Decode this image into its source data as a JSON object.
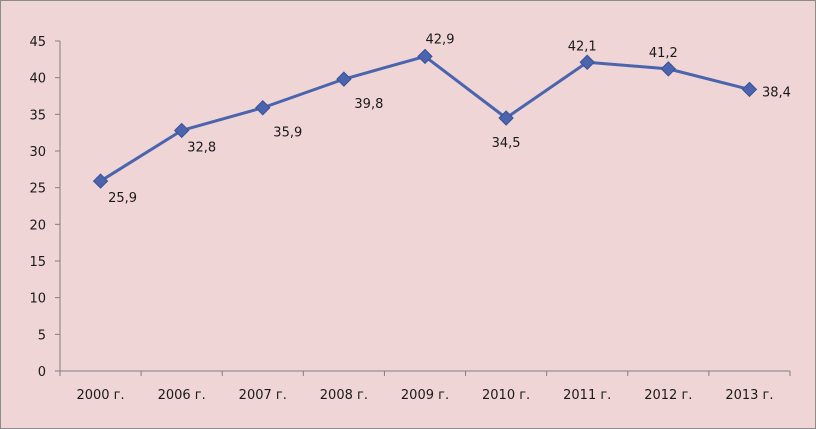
{
  "chart_data": {
    "type": "line",
    "categories": [
      "2000 г.",
      "2006 г.",
      "2007 г.",
      "2008 г.",
      "2009 г.",
      "2010 г.",
      "2011 г.",
      "2012 г.",
      "2013 г."
    ],
    "series": [
      {
        "values": [
          25.9,
          32.8,
          35.9,
          39.8,
          42.9,
          34.5,
          42.1,
          41.2,
          38.4
        ],
        "data_labels": [
          "25,9",
          "32,8",
          "35,9",
          "39,8",
          "42,9",
          "34,5",
          "42,1",
          "41,2",
          "38,4"
        ],
        "color": "#4a64ad",
        "marker": "diamond"
      }
    ],
    "title": "",
    "xlabel": "",
    "ylabel": "",
    "ylim": [
      0,
      45
    ],
    "yticks": [
      0,
      5,
      10,
      15,
      20,
      25,
      30,
      35,
      40,
      45
    ],
    "grid": false,
    "legend": "none",
    "background": "#f0d5d7"
  }
}
